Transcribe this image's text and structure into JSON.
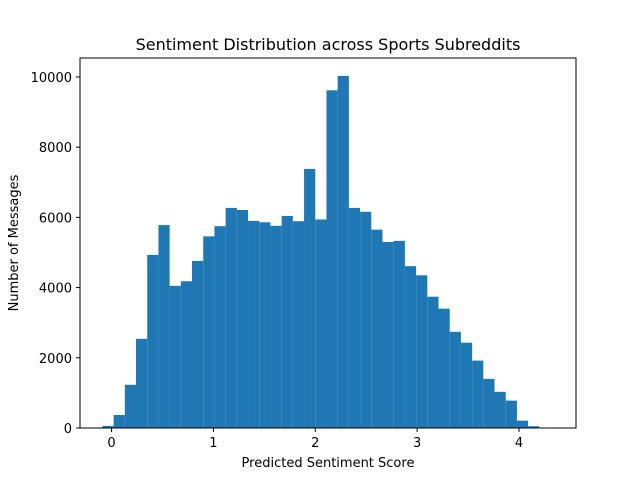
{
  "chart_data": {
    "type": "histogram",
    "title": "Sentiment Distribution across Sports Subreddits",
    "x_label": "Predicted Sentiment Score",
    "y_label": "Number of Messages",
    "bins": [
      -0.09,
      0.02,
      0.13,
      0.24,
      0.35,
      0.46,
      0.57,
      0.68,
      0.79,
      0.9,
      1.01,
      1.12,
      1.23,
      1.34,
      1.45,
      1.56,
      1.67,
      1.78,
      1.89,
      2.0,
      2.11,
      2.22,
      2.33,
      2.44,
      2.55,
      2.66,
      2.77,
      2.88,
      2.99,
      3.1,
      3.21,
      3.32,
      3.43,
      3.54,
      3.65,
      3.76,
      3.87,
      3.98,
      4.09,
      4.2
    ],
    "values": [
      60,
      370,
      1230,
      2540,
      4930,
      5780,
      4050,
      4180,
      4760,
      5460,
      5750,
      6270,
      6210,
      5900,
      5860,
      5760,
      6040,
      5890,
      7380,
      5940,
      9620,
      10030,
      6270,
      6160,
      5650,
      5300,
      5330,
      4610,
      4350,
      3740,
      3400,
      2740,
      2430,
      1920,
      1400,
      1030,
      780,
      210,
      50
    ],
    "color": "#1f77b4",
    "xlim": [
      -0.31,
      4.56
    ],
    "xticks": [
      0,
      1,
      2,
      3,
      4
    ],
    "ylim": [
      0,
      10540
    ],
    "yticks": [
      0,
      2000,
      4000,
      6000,
      8000,
      10000
    ]
  }
}
